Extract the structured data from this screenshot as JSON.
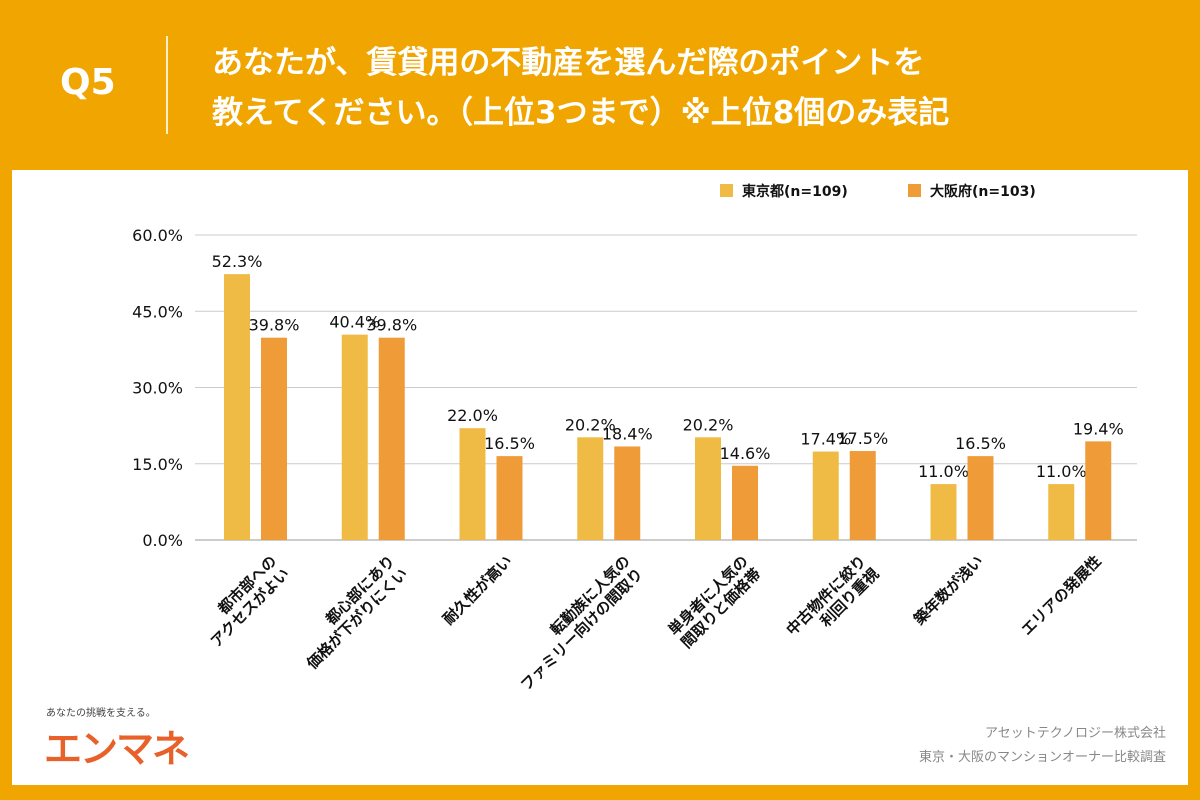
{
  "header": {
    "q": "Q5",
    "title": "あなたが、賃貸用の不動産を選んだ際のポイントを\n教えてください。（上位3つまで）※上位8個のみ表記"
  },
  "footer": {
    "tagline": "あなたの挑戦を支える。",
    "logo": "エンマネ",
    "company": "アセットテクノロジー株式会社",
    "survey": "東京・大阪のマンションオーナー比較調査"
  },
  "chart_data": {
    "type": "bar",
    "categories": [
      "都市部への\nアクセスがよい",
      "都心部にあり\n価格が下がりにくい",
      "耐久性が高い",
      "転勤族に人気の\nファミリー向けの間取り",
      "単身者に人気の\n間取りと価格帯",
      "中古物件に絞り\n利回り重視",
      "築年数が浅い",
      "エリアの発展性"
    ],
    "series": [
      {
        "name": "東京都(n=109)",
        "color": "#F0BB45",
        "values": [
          52.3,
          40.4,
          22.0,
          20.2,
          20.2,
          17.4,
          11.0,
          11.0
        ]
      },
      {
        "name": "大阪府(n=103)",
        "color": "#EE9B38",
        "values": [
          39.8,
          39.8,
          16.5,
          18.4,
          14.6,
          17.5,
          16.5,
          19.4
        ]
      }
    ],
    "yticks": [
      "0.0%",
      "15.0%",
      "30.0%",
      "45.0%",
      "60.0%"
    ],
    "ylim": [
      0,
      60
    ],
    "grid": true,
    "legend": "top-right"
  }
}
